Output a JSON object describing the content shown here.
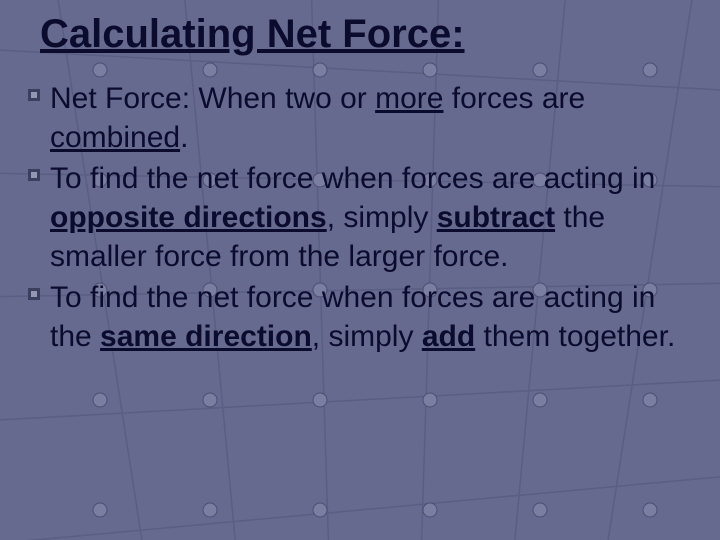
{
  "slide": {
    "title": "Calculating Net Force:",
    "title_fontsize": 40,
    "body_fontsize": 30,
    "text_color": "#0b0b2e",
    "background_color": "#666a8e",
    "bullets": [
      {
        "segments": [
          {
            "text": "Net Force: When two or ",
            "bold": false,
            "underline": false
          },
          {
            "text": "more",
            "bold": false,
            "underline": true
          },
          {
            "text": " forces are ",
            "bold": false,
            "underline": false
          },
          {
            "text": "combined",
            "bold": false,
            "underline": true
          },
          {
            "text": ".",
            "bold": false,
            "underline": false
          }
        ]
      },
      {
        "segments": [
          {
            "text": "To find the net force when forces are acting in ",
            "bold": false,
            "underline": false
          },
          {
            "text": "opposite directions",
            "bold": true,
            "underline": true
          },
          {
            "text": ", simply ",
            "bold": false,
            "underline": false
          },
          {
            "text": "subtract",
            "bold": true,
            "underline": true
          },
          {
            "text": " the smaller force from the larger force.",
            "bold": false,
            "underline": false
          }
        ]
      },
      {
        "segments": [
          {
            "text": "To find the net force when forces are acting in the ",
            "bold": false,
            "underline": false
          },
          {
            "text": "same direction",
            "bold": true,
            "underline": true
          },
          {
            "text": ", simply ",
            "bold": false,
            "underline": false
          },
          {
            "text": "add",
            "bold": true,
            "underline": true
          },
          {
            "text": " them together.",
            "bold": false,
            "underline": false
          }
        ]
      }
    ],
    "bullet_icon": {
      "outer_color": "#3a3e5f",
      "inner_color": "#9497b4",
      "size": 12
    },
    "grid": {
      "line_color": "#5a5e82",
      "vline_x": [
        100,
        210,
        320,
        430,
        540,
        650
      ],
      "hline_y": [
        -40,
        70,
        180,
        290,
        400,
        510
      ],
      "node_fill": "#7a7ea0",
      "node_stroke": "#4a4e72",
      "node_r": 7
    }
  }
}
